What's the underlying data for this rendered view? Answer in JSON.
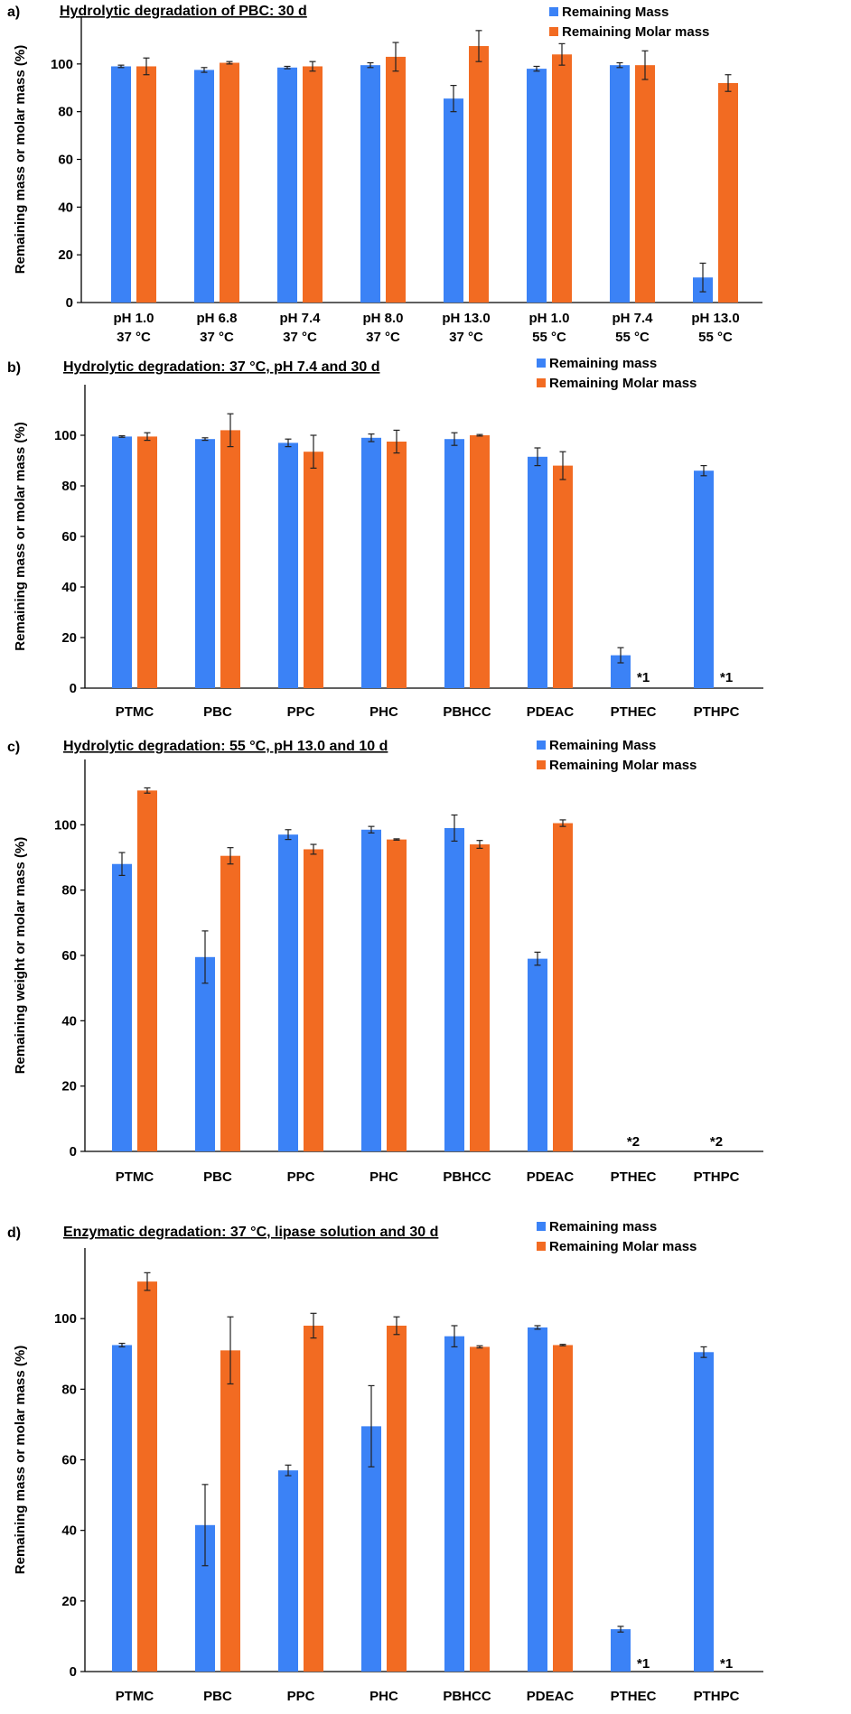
{
  "colors": {
    "mass": "#3b82f6",
    "molar": "#f26b22",
    "axis": "#000000",
    "error": "#222222"
  },
  "chart_data": [
    {
      "type": "bar",
      "panel_label": "a)",
      "title": "Hydrolytic degradation of PBC: 30 d",
      "ylabel": "Remaining mass or molar mass (%)",
      "ylim": [
        0,
        120
      ],
      "yticks": [
        "0",
        "20",
        "40",
        "60",
        "80",
        "100"
      ],
      "categories": [
        [
          "pH 1.0",
          "37 °C"
        ],
        [
          "pH 6.8",
          "37 °C"
        ],
        [
          "pH 7.4",
          "37 °C"
        ],
        [
          "pH 8.0",
          "37 °C"
        ],
        [
          "pH 13.0",
          "37 °C"
        ],
        [
          "pH 1.0",
          "55 °C"
        ],
        [
          "pH 7.4",
          "55 °C"
        ],
        [
          "pH 13.0",
          "55 °C"
        ]
      ],
      "legend_position": "top-right",
      "series": [
        {
          "name": "Remaining Mass",
          "values": [
            99,
            97.5,
            98.5,
            99.5,
            85.5,
            98,
            99.5,
            10.5
          ],
          "errors": [
            0.5,
            1,
            0.5,
            1,
            5.5,
            1,
            1,
            6
          ]
        },
        {
          "name": "Remaining Molar mass",
          "values": [
            99,
            100.5,
            99,
            103,
            107.5,
            104,
            99.5,
            92
          ],
          "errors": [
            3.5,
            0.5,
            2,
            6,
            6.5,
            4.5,
            6,
            3.5
          ]
        }
      ],
      "annotations": []
    },
    {
      "type": "bar",
      "panel_label": "b)",
      "title": "Hydrolytic degradation: 37 °C, pH 7.4 and 30 d",
      "ylabel": "Remaining mass or molar mass (%)",
      "ylim": [
        0,
        120
      ],
      "yticks": [
        "0",
        "20",
        "40",
        "60",
        "80",
        "100"
      ],
      "categories": [
        [
          "PTMC"
        ],
        [
          "PBC"
        ],
        [
          "PPC"
        ],
        [
          "PHC"
        ],
        [
          "PBHCC"
        ],
        [
          "PDEAC"
        ],
        [
          "PTHEC"
        ],
        [
          "PTHPC"
        ]
      ],
      "legend_position": "top-right",
      "series": [
        {
          "name": "Remaining mass",
          "values": [
            99.5,
            98.5,
            97,
            99,
            98.5,
            91.5,
            13,
            86
          ],
          "errors": [
            0.3,
            0.5,
            1.5,
            1.5,
            2.5,
            3.5,
            3,
            2
          ]
        },
        {
          "name": "Remaining Molar mass",
          "values": [
            99.5,
            102,
            93.5,
            97.5,
            100,
            88,
            null,
            null
          ],
          "errors": [
            1.5,
            6.5,
            6.5,
            4.5,
            0.3,
            5.5,
            null,
            null
          ]
        }
      ],
      "annotations": [
        {
          "category": 6,
          "text": "*1"
        },
        {
          "category": 7,
          "text": "*1"
        }
      ]
    },
    {
      "type": "bar",
      "panel_label": "c)",
      "title": "Hydrolytic degradation: 55 °C, pH 13.0 and 10 d",
      "ylabel": "Remaining weight or molar mass (%)",
      "ylim": [
        0,
        120
      ],
      "yticks": [
        "0",
        "20",
        "40",
        "60",
        "80",
        "100"
      ],
      "categories": [
        [
          "PTMC"
        ],
        [
          "PBC"
        ],
        [
          "PPC"
        ],
        [
          "PHC"
        ],
        [
          "PBHCC"
        ],
        [
          "PDEAC"
        ],
        [
          "PTHEC"
        ],
        [
          "PTHPC"
        ]
      ],
      "legend_position": "top-right",
      "series": [
        {
          "name": "Remaining Mass",
          "values": [
            88,
            59.5,
            97,
            98.5,
            99,
            59,
            null,
            null
          ],
          "errors": [
            3.5,
            8,
            1.5,
            1,
            4,
            2,
            null,
            null
          ]
        },
        {
          "name": "Remaining Molar mass",
          "values": [
            110.5,
            90.5,
            92.5,
            95.5,
            94,
            100.5,
            null,
            null
          ],
          "errors": [
            0.8,
            2.5,
            1.5,
            0.2,
            1.2,
            1,
            null,
            null
          ]
        }
      ],
      "annotations": [
        {
          "category": 6,
          "text": "*2"
        },
        {
          "category": 7,
          "text": "*2"
        }
      ]
    },
    {
      "type": "bar",
      "panel_label": "d)",
      "title": "Enzymatic degradation: 37 °C, lipase solution and 30 d",
      "ylabel": "Remaining mass or molar mass (%)",
      "ylim": [
        0,
        120
      ],
      "yticks": [
        "0",
        "20",
        "40",
        "60",
        "80",
        "100"
      ],
      "categories": [
        [
          "PTMC"
        ],
        [
          "PBC"
        ],
        [
          "PPC"
        ],
        [
          "PHC"
        ],
        [
          "PBHCC"
        ],
        [
          "PDEAC"
        ],
        [
          "PTHEC"
        ],
        [
          "PTHPC"
        ]
      ],
      "legend_position": "top-right",
      "series": [
        {
          "name": "Remaining mass",
          "values": [
            92.5,
            41.5,
            57,
            69.5,
            95,
            97.5,
            12,
            90.5
          ],
          "errors": [
            0.5,
            11.5,
            1.5,
            11.5,
            3,
            0.5,
            0.8,
            1.5
          ]
        },
        {
          "name": "Remaining Molar mass",
          "values": [
            110.5,
            91,
            98,
            98,
            92,
            92.5,
            null,
            null
          ],
          "errors": [
            2.5,
            9.5,
            3.5,
            2.5,
            0.3,
            0.2,
            null,
            null
          ]
        }
      ],
      "annotations": [
        {
          "category": 6,
          "text": "*1"
        },
        {
          "category": 7,
          "text": "*1"
        }
      ]
    }
  ]
}
